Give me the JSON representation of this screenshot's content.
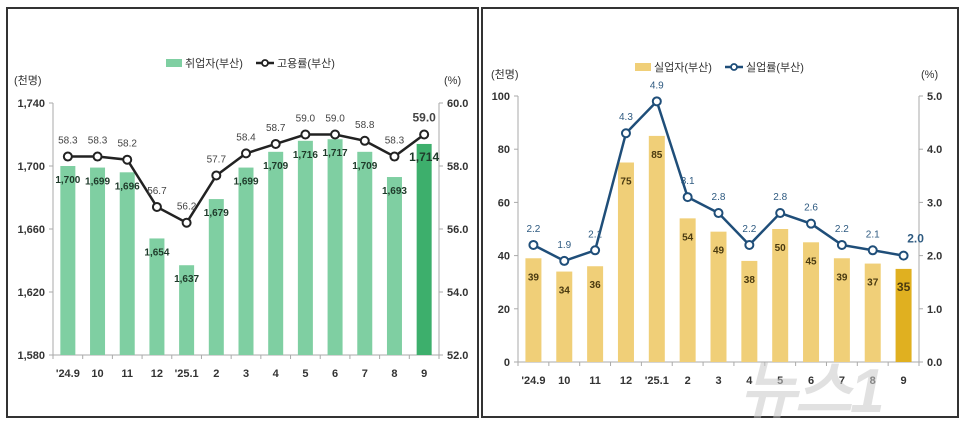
{
  "chart_data": [
    {
      "type": "bar+line",
      "title": "",
      "legend": [
        "취업자(부산)",
        "고용률(부산)"
      ],
      "legend_position": "top",
      "categories": [
        "'24.9",
        "10",
        "11",
        "12",
        "'25.1",
        "2",
        "3",
        "4",
        "5",
        "6",
        "7",
        "8",
        "9"
      ],
      "series": [
        {
          "name": "취업자(부산)",
          "type": "bar",
          "axis": "left",
          "values": [
            1700,
            1699,
            1696,
            1654,
            1637,
            1679,
            1699,
            1709,
            1716,
            1717,
            1709,
            1693,
            1714
          ],
          "color": "#7fcfa2",
          "highlight_color": "#3daf6c"
        },
        {
          "name": "고용률(부산)",
          "type": "line",
          "axis": "right",
          "values": [
            58.3,
            58.3,
            58.2,
            56.7,
            56.2,
            57.7,
            58.4,
            58.7,
            59.0,
            59.0,
            58.8,
            58.3,
            59.0
          ],
          "color": "#222222"
        }
      ],
      "ylabel": "(천명)",
      "ylabel_right": "(%)",
      "ylim": [
        1580,
        1740
      ],
      "yticks": [
        "1,580",
        "1,620",
        "1,660",
        "1,700",
        "1,740"
      ],
      "ylim_right": [
        52.0,
        60.0
      ],
      "yticks_right": [
        "52.0",
        "54.0",
        "56.0",
        "58.0",
        "60.0"
      ],
      "grid": false
    },
    {
      "type": "bar+line",
      "title": "",
      "legend": [
        "실업자(부산)",
        "실업률(부산)"
      ],
      "legend_position": "top",
      "categories": [
        "'24.9",
        "10",
        "11",
        "12",
        "'25.1",
        "2",
        "3",
        "4",
        "5",
        "6",
        "7",
        "8",
        "9"
      ],
      "series": [
        {
          "name": "실업자(부산)",
          "type": "bar",
          "axis": "left",
          "values": [
            39,
            34,
            36,
            75,
            85,
            54,
            49,
            38,
            50,
            45,
            39,
            37,
            35
          ],
          "color": "#f0cf78",
          "highlight_color": "#e0b020"
        },
        {
          "name": "실업률(부산)",
          "type": "line",
          "axis": "right",
          "values": [
            2.2,
            1.9,
            2.1,
            4.3,
            4.9,
            3.1,
            2.8,
            2.2,
            2.8,
            2.6,
            2.2,
            2.1,
            2.0
          ],
          "color": "#1f4e79"
        }
      ],
      "ylabel": "(천명)",
      "ylabel_right": "(%)",
      "ylim": [
        0,
        100
      ],
      "yticks": [
        "0",
        "20",
        "40",
        "60",
        "80",
        "100"
      ],
      "ylim_right": [
        0.0,
        5.0
      ],
      "yticks_right": [
        "0.0",
        "1.0",
        "2.0",
        "3.0",
        "4.0",
        "5.0"
      ],
      "grid": false
    }
  ],
  "watermark": "뉴스1"
}
